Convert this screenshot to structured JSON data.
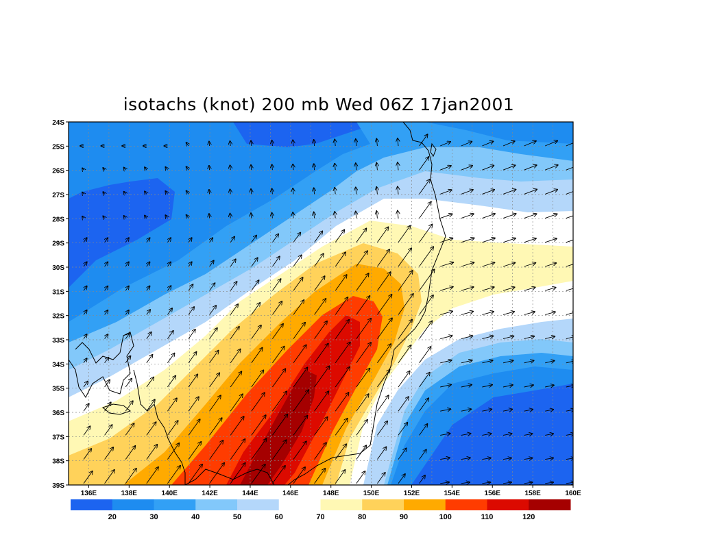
{
  "title": "isotachs (knot) 200 mb Wed 06Z 17jan2001",
  "map": {
    "lon_range": [
      135,
      160
    ],
    "lat_range": [
      -39,
      -24
    ],
    "lon_ticks": [
      "136E",
      "138E",
      "140E",
      "142E",
      "144E",
      "146E",
      "148E",
      "150E",
      "152E",
      "154E",
      "156E",
      "158E",
      "160E"
    ],
    "lat_ticks": [
      "24S",
      "25S",
      "26S",
      "27S",
      "28S",
      "29S",
      "30S",
      "31S",
      "32S",
      "33S",
      "34S",
      "35S",
      "36S",
      "37S",
      "38S",
      "39S"
    ],
    "gridlines": "dotted"
  },
  "colorbar": {
    "labels": [
      "20",
      "30",
      "40",
      "50",
      "60",
      "70",
      "80",
      "90",
      "100",
      "110",
      "120"
    ],
    "colors": [
      "#1c64f0",
      "#1e8cf0",
      "#32a0f5",
      "#82c8fa",
      "#b4d7fa",
      "#ffffff",
      "#fff8b4",
      "#ffd25a",
      "#ffaa00",
      "#ff3c00",
      "#dc0a00",
      "#a50000"
    ]
  }
}
